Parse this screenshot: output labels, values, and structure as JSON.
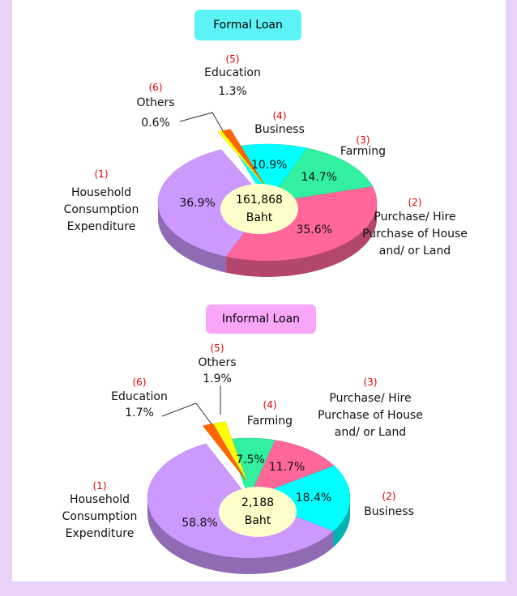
{
  "chart_data": [
    {
      "type": "pie",
      "title": "Formal Loan",
      "center_value": "161,868",
      "center_unit": "Baht",
      "numbers": [
        "(1)",
        "(2)",
        "(3)",
        "(4)",
        "(5)",
        "(6)"
      ],
      "categories": [
        "Household Consumption Expenditure",
        "Purchase/ Hire Purchase of House and/ or Land",
        "Farming",
        "Business",
        "Education",
        "Others"
      ],
      "values": [
        36.9,
        35.6,
        14.7,
        10.9,
        1.3,
        0.6
      ],
      "value_labels": [
        "36.9%",
        "35.6%",
        "14.7%",
        "10.9%",
        "1.3%",
        "0.6%"
      ],
      "colors": [
        "#cc99ff",
        "#ff6699",
        "#33f0a0",
        "#00ffff",
        "#ff6600",
        "#ffff00"
      ],
      "explode": [
        false,
        false,
        false,
        false,
        true,
        true
      ]
    },
    {
      "type": "pie",
      "title": "Informal Loan",
      "center_value": "2,188",
      "center_unit": "Baht",
      "numbers": [
        "(1)",
        "(2)",
        "(3)",
        "(4)",
        "(5)",
        "(6)"
      ],
      "categories": [
        "Household Consumption Expenditure",
        "Business",
        "Purchase/ Hire Purchase of House and/ or Land",
        "Farming",
        "Others",
        "Education"
      ],
      "values": [
        58.8,
        18.4,
        11.7,
        7.5,
        1.9,
        1.7
      ],
      "value_labels": [
        "58.8%",
        "18.4%",
        "11.7%",
        "7.5%",
        "1.9%",
        "1.7%"
      ],
      "colors": [
        "#cc99ff",
        "#00ffff",
        "#ff6699",
        "#33f0a0",
        "#ffff00",
        "#ff6600"
      ],
      "explode": [
        false,
        false,
        false,
        false,
        true,
        true
      ]
    }
  ]
}
